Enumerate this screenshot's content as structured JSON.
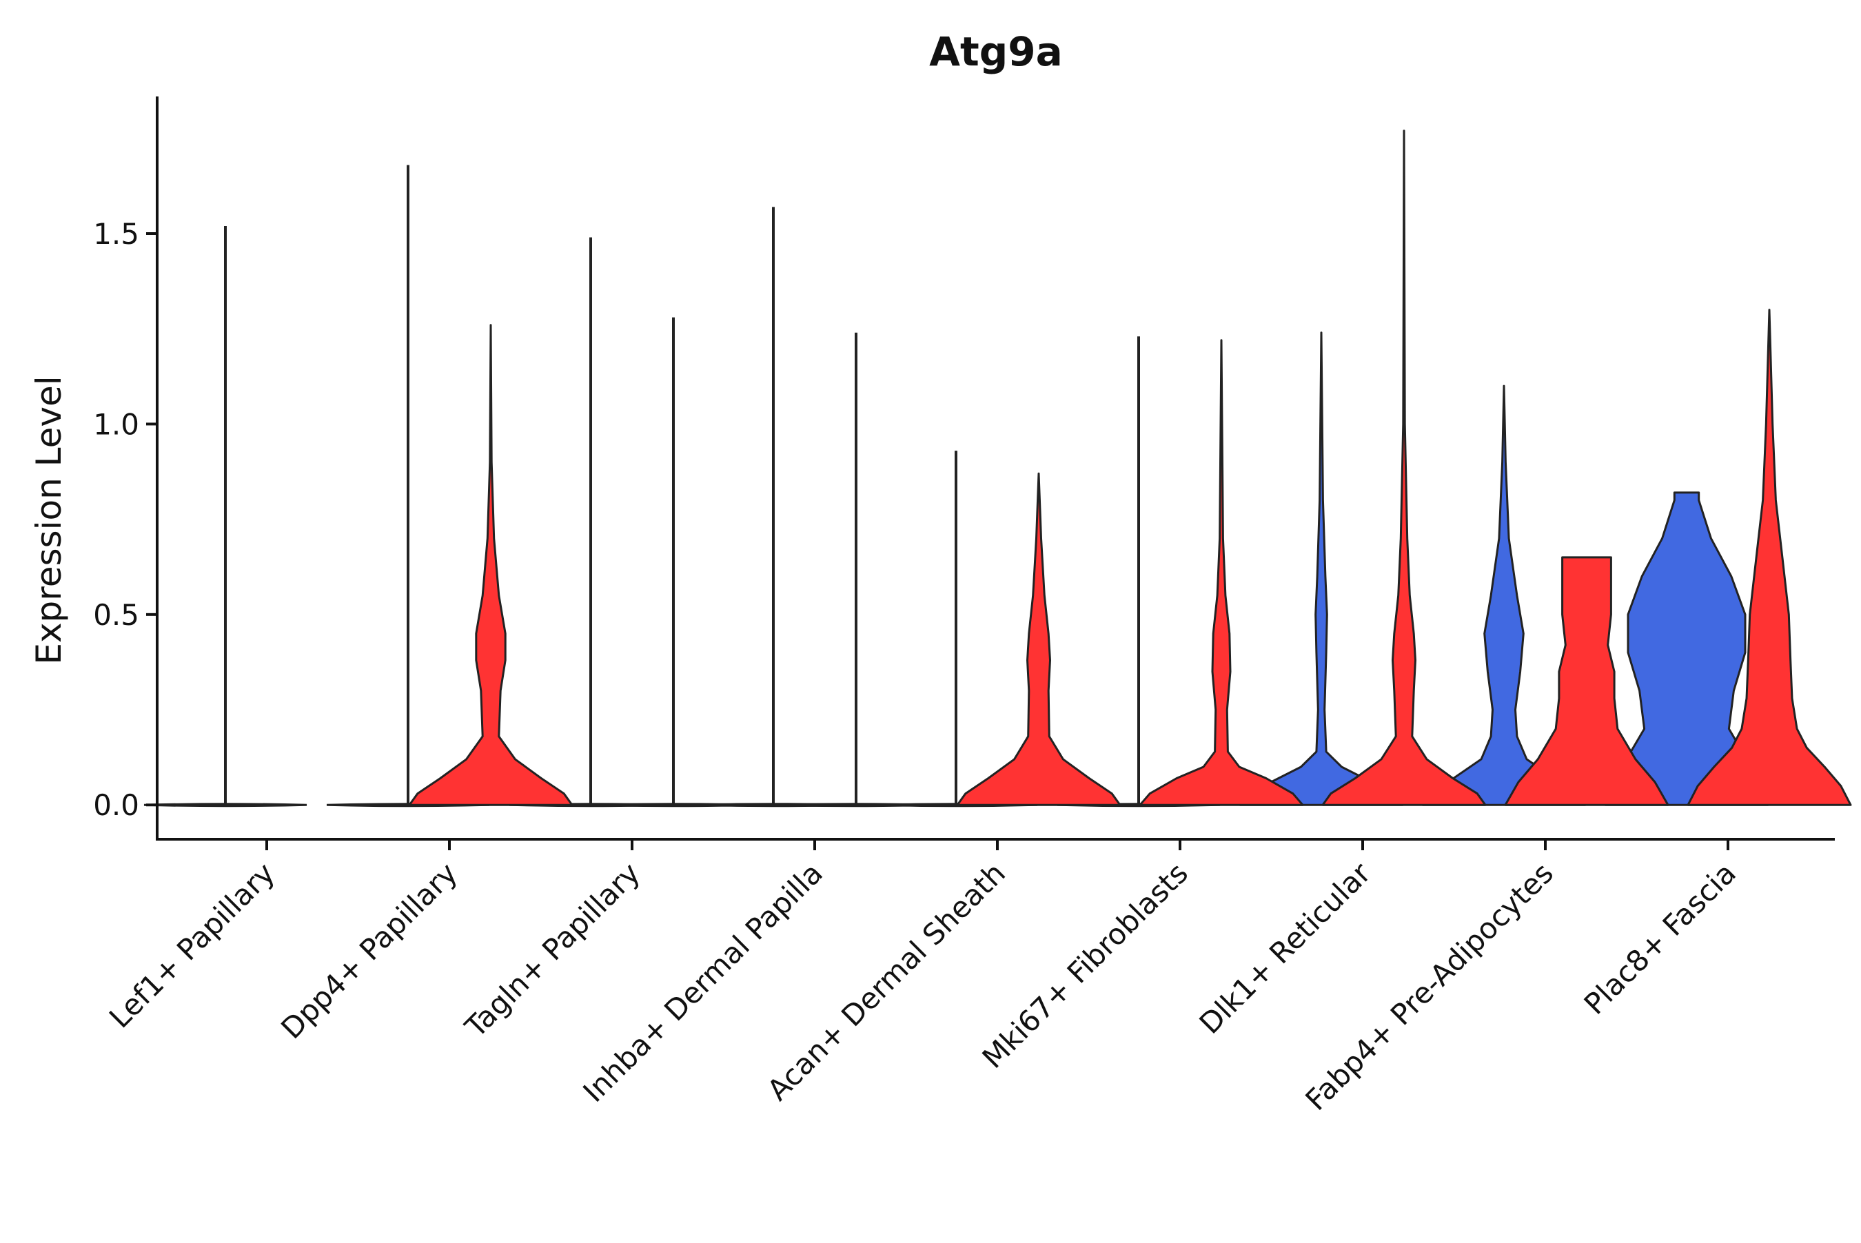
{
  "chart_data": {
    "type": "violin",
    "title": "Atg9a",
    "xlabel": "",
    "ylabel": "Expression Level",
    "ylim": [
      -0.09,
      1.86
    ],
    "yticks": [
      0.0,
      0.5,
      1.0,
      1.5
    ],
    "ytick_labels": [
      "0.0",
      "0.5",
      "1.0",
      "1.5"
    ],
    "legend": "none",
    "grid": false,
    "colors": {
      "blue": "#4169e1",
      "red": "#ff3333",
      "outline": "#222222",
      "axis": "#111111"
    },
    "categories": [
      "Lef1+ Papillary",
      "Dpp4+ Papillary",
      "Tagln+ Papillary",
      "Inhba+ Dermal Papilla",
      "Acan+ Dermal Sheath",
      "Mki67+ Fibroblasts",
      "Dlk1+ Reticular",
      "Fabp4+ Pre-Adipocytes",
      "Plac8+ Fascia"
    ],
    "series": [
      {
        "name": "group-blue",
        "color": "#4169e1",
        "violins": [
          {
            "max": 1.52,
            "shape": [
              [
                0.0,
                0.02
              ]
            ]
          },
          {
            "max": 1.68,
            "shape": [
              [
                0.0,
                0.02
              ]
            ]
          },
          {
            "max": 1.49,
            "shape": [
              [
                0.0,
                0.02
              ]
            ]
          },
          {
            "max": 1.57,
            "shape": [
              [
                0.0,
                0.02
              ]
            ]
          },
          {
            "max": 0.93,
            "shape": [
              [
                0.0,
                0.02
              ]
            ]
          },
          {
            "max": 1.23,
            "shape": [
              [
                0.0,
                0.02
              ]
            ]
          },
          {
            "max": 1.24,
            "shape": [
              [
                0.0,
                1.0
              ],
              [
                0.03,
                0.9
              ],
              [
                0.06,
                0.62
              ],
              [
                0.1,
                0.25
              ],
              [
                0.14,
                0.06
              ],
              [
                0.25,
                0.04
              ],
              [
                0.4,
                0.06
              ],
              [
                0.5,
                0.07
              ],
              [
                0.6,
                0.05
              ],
              [
                0.8,
                0.02
              ],
              [
                1.24,
                0.0
              ]
            ]
          },
          {
            "max": 1.1,
            "shape": [
              [
                0.0,
                1.0
              ],
              [
                0.03,
                0.9
              ],
              [
                0.07,
                0.62
              ],
              [
                0.12,
                0.28
              ],
              [
                0.18,
                0.16
              ],
              [
                0.25,
                0.14
              ],
              [
                0.35,
                0.2
              ],
              [
                0.45,
                0.24
              ],
              [
                0.55,
                0.16
              ],
              [
                0.7,
                0.06
              ],
              [
                0.9,
                0.02
              ],
              [
                1.1,
                0.0
              ]
            ]
          },
          {
            "max": 0.82,
            "shape": [
              [
                0.0,
                1.0
              ],
              [
                0.06,
                0.92
              ],
              [
                0.12,
                0.74
              ],
              [
                0.2,
                0.52
              ],
              [
                0.3,
                0.58
              ],
              [
                0.4,
                0.72
              ],
              [
                0.5,
                0.72
              ],
              [
                0.6,
                0.55
              ],
              [
                0.7,
                0.3
              ],
              [
                0.8,
                0.15
              ],
              [
                0.82,
                0.15
              ]
            ]
          }
        ]
      },
      {
        "name": "group-red",
        "color": "#ff3333",
        "violins": [
          null,
          {
            "max": 1.26,
            "shape": [
              [
                0.0,
                1.0
              ],
              [
                0.03,
                0.9
              ],
              [
                0.07,
                0.62
              ],
              [
                0.12,
                0.3
              ],
              [
                0.18,
                0.1
              ],
              [
                0.3,
                0.12
              ],
              [
                0.38,
                0.18
              ],
              [
                0.45,
                0.18
              ],
              [
                0.55,
                0.1
              ],
              [
                0.7,
                0.04
              ],
              [
                0.9,
                0.01
              ],
              [
                1.26,
                0.0
              ]
            ]
          },
          {
            "max": 1.28,
            "shape": [
              [
                0.0,
                0.02
              ]
            ]
          },
          {
            "max": 1.24,
            "shape": [
              [
                0.0,
                0.02
              ]
            ]
          },
          {
            "max": 0.87,
            "shape": [
              [
                0.0,
                1.0
              ],
              [
                0.03,
                0.9
              ],
              [
                0.07,
                0.62
              ],
              [
                0.12,
                0.3
              ],
              [
                0.18,
                0.13
              ],
              [
                0.3,
                0.12
              ],
              [
                0.38,
                0.14
              ],
              [
                0.45,
                0.12
              ],
              [
                0.55,
                0.07
              ],
              [
                0.7,
                0.03
              ],
              [
                0.87,
                0.0
              ]
            ]
          },
          {
            "max": 1.22,
            "shape": [
              [
                0.0,
                1.0
              ],
              [
                0.03,
                0.88
              ],
              [
                0.07,
                0.55
              ],
              [
                0.1,
                0.22
              ],
              [
                0.14,
                0.08
              ],
              [
                0.25,
                0.07
              ],
              [
                0.35,
                0.11
              ],
              [
                0.45,
                0.1
              ],
              [
                0.55,
                0.05
              ],
              [
                0.7,
                0.02
              ],
              [
                1.22,
                0.0
              ]
            ]
          },
          {
            "max": 1.77,
            "shape": [
              [
                0.0,
                1.0
              ],
              [
                0.03,
                0.9
              ],
              [
                0.07,
                0.6
              ],
              [
                0.12,
                0.28
              ],
              [
                0.18,
                0.1
              ],
              [
                0.3,
                0.12
              ],
              [
                0.38,
                0.14
              ],
              [
                0.45,
                0.12
              ],
              [
                0.55,
                0.07
              ],
              [
                0.7,
                0.04
              ],
              [
                1.0,
                0.01
              ],
              [
                1.77,
                0.0
              ]
            ]
          },
          {
            "max": 0.65,
            "shape": [
              [
                0.0,
                1.0
              ],
              [
                0.06,
                0.84
              ],
              [
                0.12,
                0.6
              ],
              [
                0.2,
                0.38
              ],
              [
                0.28,
                0.34
              ],
              [
                0.35,
                0.34
              ],
              [
                0.42,
                0.26
              ],
              [
                0.5,
                0.3
              ],
              [
                0.58,
                0.3
              ],
              [
                0.65,
                0.3
              ]
            ]
          },
          {
            "max": 1.3,
            "shape": [
              [
                0.0,
                1.0
              ],
              [
                0.05,
                0.88
              ],
              [
                0.1,
                0.68
              ],
              [
                0.15,
                0.46
              ],
              [
                0.2,
                0.34
              ],
              [
                0.28,
                0.28
              ],
              [
                0.38,
                0.26
              ],
              [
                0.5,
                0.24
              ],
              [
                0.65,
                0.16
              ],
              [
                0.8,
                0.08
              ],
              [
                1.0,
                0.04
              ],
              [
                1.3,
                0.0
              ]
            ]
          }
        ]
      }
    ]
  }
}
